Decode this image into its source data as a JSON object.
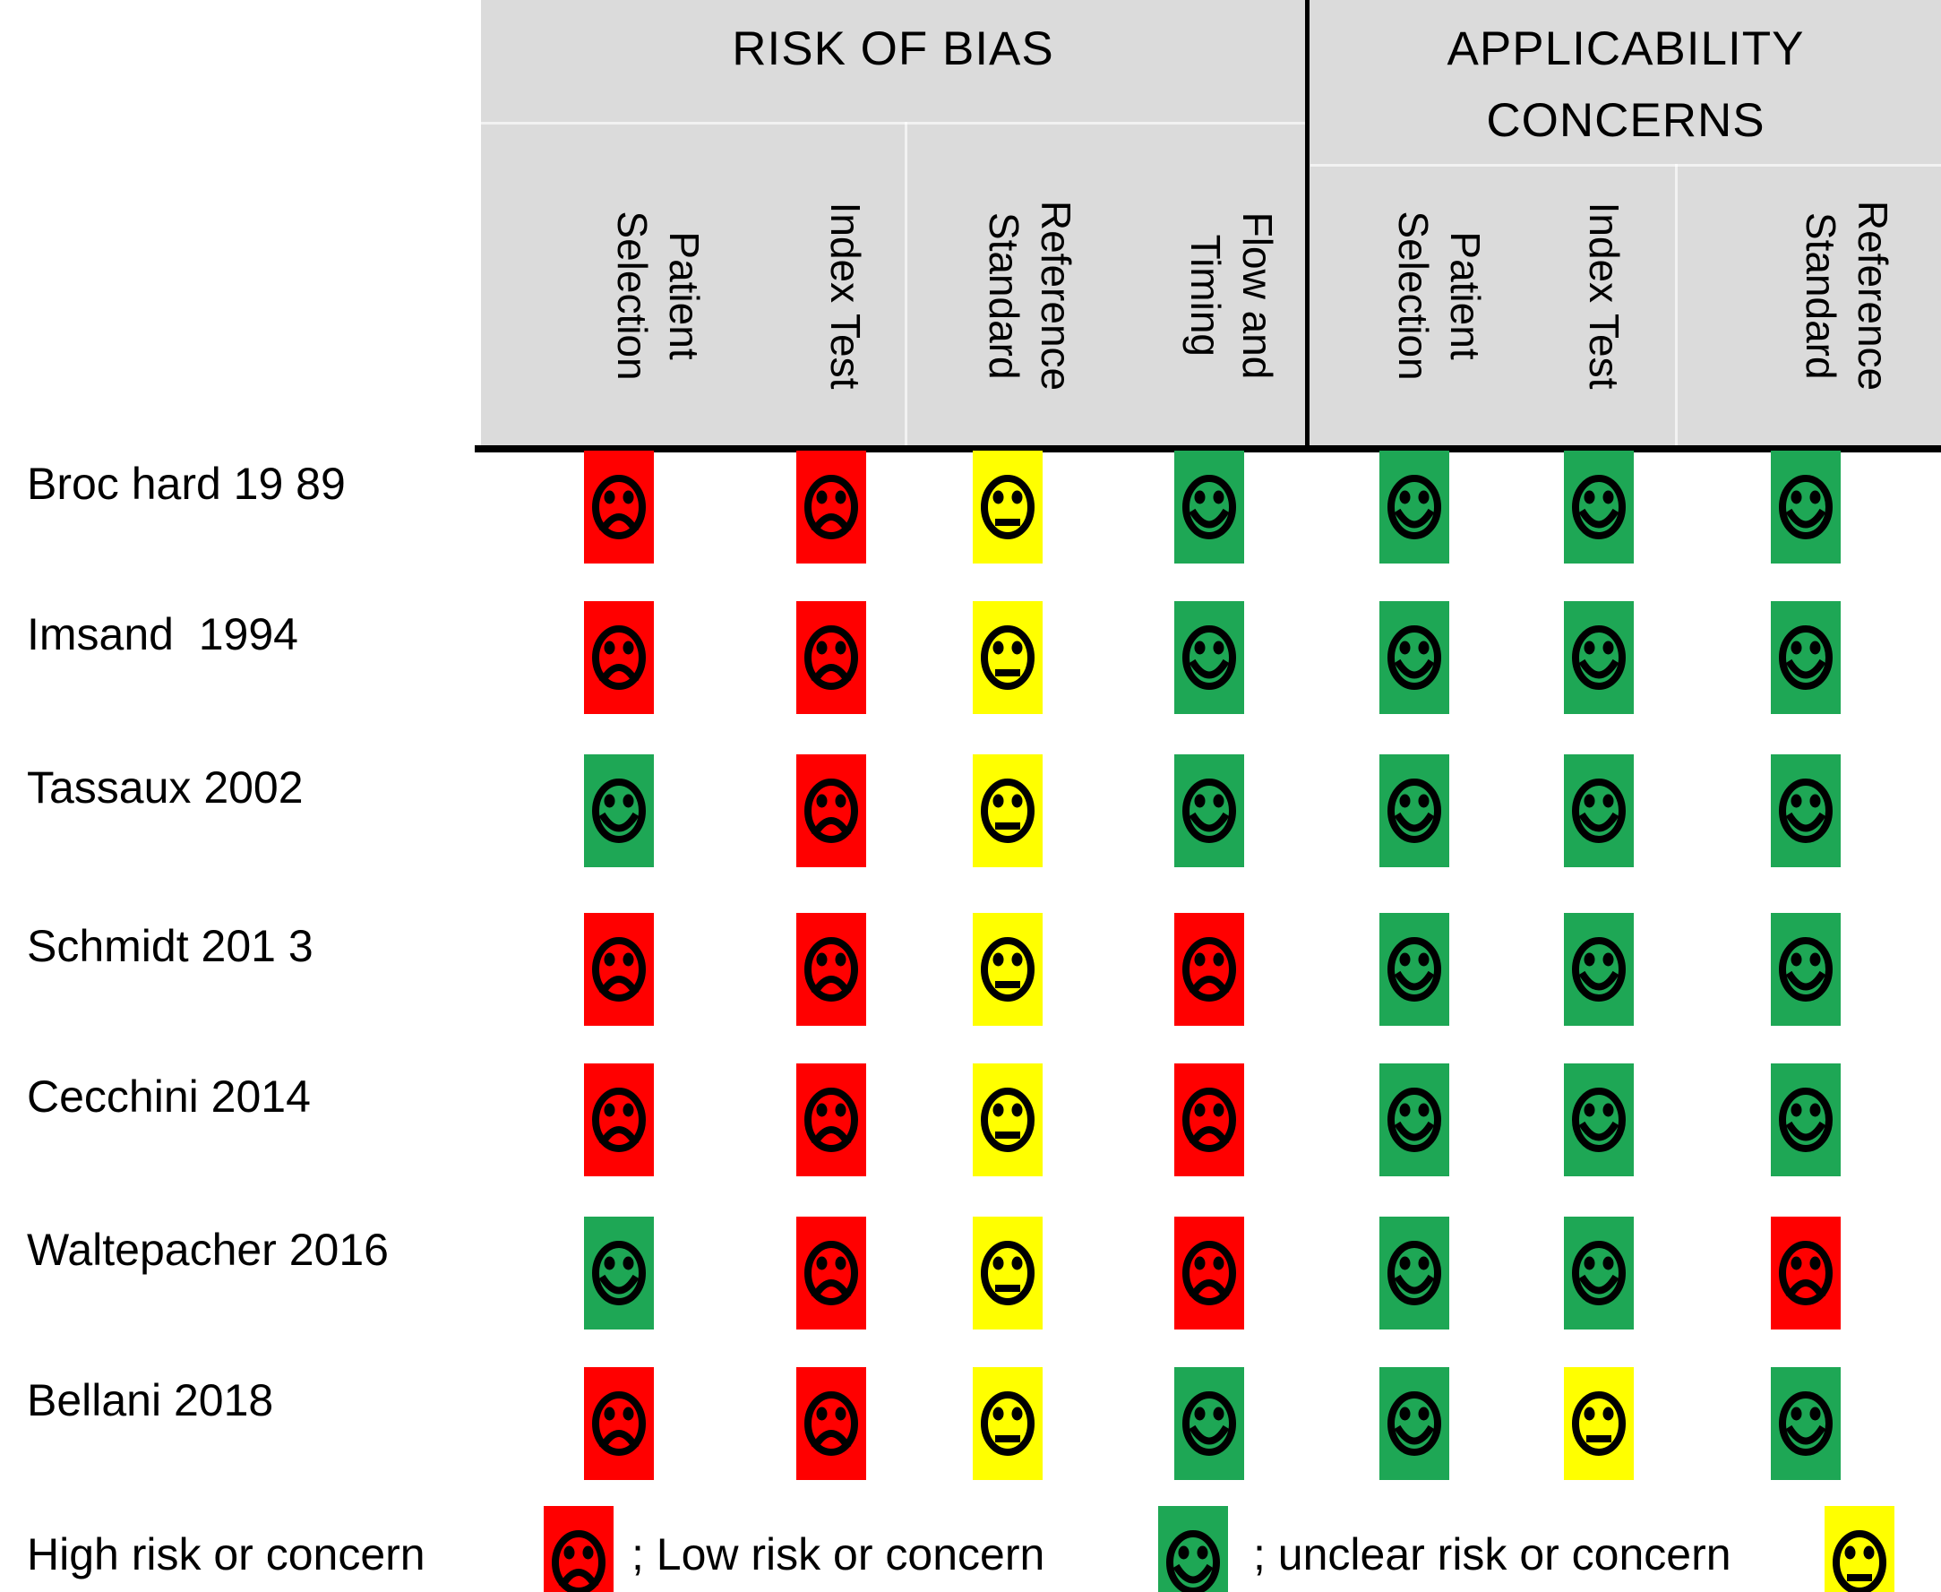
{
  "header": {
    "risk_of_bias_title": "RISK OF BIAS",
    "applicability_title_line1": "APPLICABILITY",
    "applicability_title_line2": "CONCERNS",
    "risk_columns": [
      {
        "lines": [
          "Patient",
          "Selection"
        ]
      },
      {
        "lines": [
          "Index Test"
        ]
      },
      {
        "lines": [
          "Reference",
          "Standard"
        ]
      },
      {
        "lines": [
          "Flow and",
          "Timing"
        ]
      }
    ],
    "applicability_columns": [
      {
        "lines": [
          "Patient",
          "Selection"
        ]
      },
      {
        "lines": [
          "Index Test"
        ]
      },
      {
        "lines": [
          "Reference",
          "Standard"
        ]
      }
    ]
  },
  "studies": [
    {
      "label": "Broc hard 19 89",
      "ratings": [
        "high",
        "high",
        "unclear",
        "low",
        "low",
        "low",
        "low"
      ]
    },
    {
      "label": "Imsand  1994",
      "ratings": [
        "high",
        "high",
        "unclear",
        "low",
        "low",
        "low",
        "low"
      ]
    },
    {
      "label": "Tassaux 2002",
      "ratings": [
        "low",
        "high",
        "unclear",
        "low",
        "low",
        "low",
        "low"
      ]
    },
    {
      "label": "Schmidt 201 3",
      "ratings": [
        "high",
        "high",
        "unclear",
        "high",
        "low",
        "low",
        "low"
      ]
    },
    {
      "label": "Cecchini 2014",
      "ratings": [
        "high",
        "high",
        "unclear",
        "high",
        "low",
        "low",
        "low"
      ]
    },
    {
      "label": "Waltepacher 2016",
      "ratings": [
        "low",
        "high",
        "unclear",
        "high",
        "low",
        "low",
        "high"
      ]
    },
    {
      "label": "Bellani 2018",
      "ratings": [
        "high",
        "high",
        "unclear",
        "low",
        "low",
        "unclear",
        "low"
      ]
    }
  ],
  "legend": [
    {
      "label": "High risk or concern",
      "status": "high"
    },
    {
      "label": "; Low risk or concern",
      "status": "low"
    },
    {
      "label": "; unclear risk or concern",
      "status": "unclear"
    }
  ],
  "statuses": {
    "high": {
      "color": "#FF0000",
      "face": "sad"
    },
    "low": {
      "color": "#1EA755",
      "face": "happy"
    },
    "unclear": {
      "color": "#FFFF00",
      "face": "neutral"
    }
  },
  "colors": {
    "header_bg": "#DBDBDB",
    "grid_line": "#000000",
    "face_ink": "#000000"
  },
  "chart_data": {
    "type": "table",
    "title": "QUADAS-2 risk of bias and applicability concerns summary",
    "column_groups": [
      {
        "label": "RISK OF BIAS",
        "columns": [
          "Patient Selection",
          "Index Test",
          "Reference Standard",
          "Flow and Timing"
        ]
      },
      {
        "label": "APPLICABILITY CONCERNS",
        "columns": [
          "Patient Selection",
          "Index Test",
          "Reference Standard"
        ]
      }
    ],
    "rows": [
      {
        "study": "Brochard 1989",
        "values": [
          "high",
          "high",
          "unclear",
          "low",
          "low",
          "low",
          "low"
        ]
      },
      {
        "study": "Imsand 1994",
        "values": [
          "high",
          "high",
          "unclear",
          "low",
          "low",
          "low",
          "low"
        ]
      },
      {
        "study": "Tassaux 2002",
        "values": [
          "low",
          "high",
          "unclear",
          "low",
          "low",
          "low",
          "low"
        ]
      },
      {
        "study": "Schmidt 2013",
        "values": [
          "high",
          "high",
          "unclear",
          "high",
          "low",
          "low",
          "low"
        ]
      },
      {
        "study": "Cecchini 2014",
        "values": [
          "high",
          "high",
          "unclear",
          "high",
          "low",
          "low",
          "low"
        ]
      },
      {
        "study": "Waltepacher 2016",
        "values": [
          "low",
          "high",
          "unclear",
          "high",
          "low",
          "low",
          "high"
        ]
      },
      {
        "study": "Bellani 2018",
        "values": [
          "high",
          "high",
          "unclear",
          "low",
          "low",
          "unclear",
          "low"
        ]
      }
    ],
    "legend": {
      "high": "High risk or concern (red sad face)",
      "low": "Low risk or concern (green happy face)",
      "unclear": "Unclear risk or concern (yellow neutral face)"
    }
  }
}
